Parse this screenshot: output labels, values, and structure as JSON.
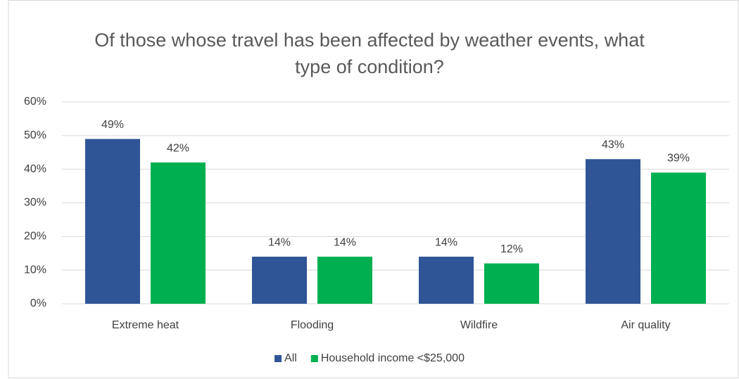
{
  "chart_data": {
    "type": "bar",
    "title": "Of those whose travel has been affected by weather events, what type of condition?",
    "categories": [
      "Extreme heat",
      "Flooding",
      "Wildfire",
      "Air quality"
    ],
    "series": [
      {
        "name": "All",
        "color": "#2f5597",
        "values": [
          49,
          14,
          14,
          43
        ],
        "value_labels": [
          "49%",
          "14%",
          "14%",
          "43%"
        ]
      },
      {
        "name": "Household income <$25,000",
        "color": "#00b050",
        "values": [
          42,
          14,
          12,
          39
        ],
        "value_labels": [
          "42%",
          "14%",
          "12%",
          "39%"
        ]
      }
    ],
    "ylim": [
      0,
      60
    ],
    "yticks": [
      {
        "value": 0,
        "label": "0%"
      },
      {
        "value": 10,
        "label": "10%"
      },
      {
        "value": 20,
        "label": "20%"
      },
      {
        "value": 30,
        "label": "30%"
      },
      {
        "value": 40,
        "label": "40%"
      },
      {
        "value": 50,
        "label": "50%"
      },
      {
        "value": 60,
        "label": "60%"
      }
    ],
    "grid": true,
    "legend": "bottom"
  }
}
